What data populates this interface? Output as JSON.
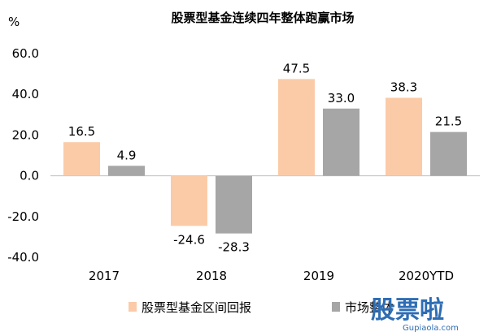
{
  "chart_data": {
    "type": "bar",
    "title": "股票型基金连续四年整体跑赢市场",
    "unit_label": "%",
    "categories": [
      "2017",
      "2018",
      "2019",
      "2020YTD"
    ],
    "series": [
      {
        "name": "股票型基金区间回报",
        "values": [
          16.5,
          -24.6,
          47.5,
          38.3
        ],
        "color": "#FBCBA8"
      },
      {
        "name": "市场整体",
        "values": [
          4.9,
          -28.3,
          33.0,
          21.5
        ],
        "color": "#A6A6A6"
      }
    ],
    "data_labels": [
      [
        "16.5",
        "-24.6",
        "47.5",
        "38.3"
      ],
      [
        "4.9",
        "-28.3",
        "33.0",
        "21.5"
      ]
    ],
    "ylim": [
      -40,
      60
    ],
    "yticks": [
      60,
      40,
      20,
      0,
      -20,
      -40
    ],
    "ytick_labels": [
      "60.0",
      "40.0",
      "20.0",
      "0.0",
      "-20.0",
      "-40.0"
    ],
    "grid": false,
    "legend_position": "bottom",
    "legend_labels": [
      "股票型基金区间回报",
      "市场整体"
    ]
  },
  "watermark": {
    "main": "股票啦",
    "sub": "Gupiaola.com",
    "color": "#2E6DB4"
  }
}
